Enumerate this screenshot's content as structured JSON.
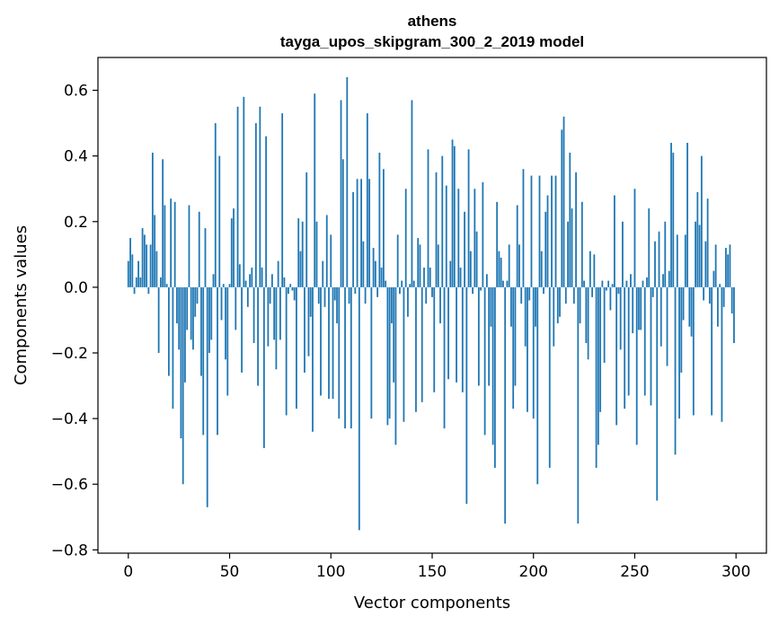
{
  "chart_data": {
    "type": "bar",
    "title": "athens",
    "subtitle": "tayga_upos_skipgram_300_2_2019 model",
    "xlabel": "Vector components",
    "ylabel": "Components values",
    "xlim": [
      -15,
      315
    ],
    "ylim": [
      -0.81,
      0.7
    ],
    "xticks": [
      0,
      50,
      100,
      150,
      200,
      250,
      300
    ],
    "yticks": [
      -0.8,
      -0.6,
      -0.4,
      -0.2,
      0.0,
      0.2,
      0.4,
      0.6
    ],
    "ytick_labels": [
      "−0.8",
      "−0.6",
      "−0.4",
      "−0.2",
      "0.0",
      "0.2",
      "0.4",
      "0.6"
    ],
    "xtick_labels": [
      "0",
      "50",
      "100",
      "150",
      "200",
      "250",
      "300"
    ],
    "bar_color": "#1f77b4",
    "values": [
      0.08,
      0.15,
      0.1,
      -0.02,
      0.03,
      0.08,
      0.03,
      0.18,
      0.16,
      0.13,
      -0.02,
      0.13,
      0.41,
      0.22,
      0.11,
      -0.2,
      0.03,
      0.39,
      0.25,
      0.01,
      -0.27,
      0.27,
      -0.37,
      0.26,
      -0.11,
      -0.19,
      -0.46,
      -0.6,
      -0.29,
      -0.13,
      0.25,
      -0.16,
      -0.19,
      -0.09,
      -0.05,
      0.23,
      -0.27,
      -0.45,
      0.18,
      -0.67,
      -0.2,
      -0.16,
      0.04,
      0.5,
      -0.45,
      0.4,
      -0.1,
      0.01,
      -0.22,
      -0.33,
      0.01,
      0.21,
      0.24,
      -0.13,
      0.55,
      0.07,
      -0.26,
      0.58,
      0.02,
      -0.06,
      0.04,
      0.06,
      -0.17,
      0.5,
      -0.3,
      0.55,
      0.06,
      -0.49,
      0.46,
      -0.18,
      -0.05,
      0.04,
      -0.16,
      -0.25,
      0.08,
      -0.16,
      0.53,
      0.03,
      -0.39,
      -0.02,
      0.01,
      -0.01,
      -0.04,
      -0.37,
      0.21,
      0.11,
      0.2,
      -0.26,
      0.35,
      -0.21,
      -0.09,
      -0.44,
      0.59,
      0.2,
      -0.05,
      -0.33,
      0.08,
      -0.06,
      0.22,
      -0.34,
      0.16,
      -0.34,
      -0.04,
      -0.11,
      -0.4,
      0.57,
      0.39,
      -0.43,
      0.64,
      -0.05,
      -0.43,
      0.29,
      -0.02,
      0.33,
      -0.74,
      0.33,
      0.14,
      -0.05,
      0.53,
      0.33,
      -0.4,
      0.12,
      0.08,
      -0.03,
      0.41,
      0.06,
      0.36,
      0.02,
      -0.42,
      -0.4,
      -0.11,
      -0.29,
      -0.48,
      0.16,
      -0.02,
      0.02,
      -0.41,
      0.3,
      -0.09,
      0.01,
      0.57,
      0.02,
      -0.38,
      0.15,
      0.13,
      -0.35,
      0.06,
      -0.05,
      0.42,
      0.06,
      -0.03,
      -0.32,
      0.35,
      0.13,
      -0.11,
      0.4,
      -0.43,
      0.31,
      -0.28,
      0.08,
      0.45,
      0.43,
      -0.29,
      0.3,
      0.06,
      -0.32,
      0.23,
      -0.66,
      0.42,
      0.11,
      -0.02,
      0.3,
      0.17,
      -0.3,
      -0.01,
      0.32,
      -0.45,
      0.04,
      -0.3,
      -0.12,
      -0.48,
      -0.55,
      0.26,
      0.11,
      0.09,
      0.02,
      -0.72,
      0.02,
      0.13,
      -0.12,
      -0.37,
      -0.3,
      0.25,
      0.13,
      -0.05,
      0.36,
      -0.18,
      -0.38,
      -0.04,
      0.34,
      -0.4,
      -0.12,
      -0.6,
      0.34,
      0.11,
      -0.02,
      0.23,
      0.28,
      -0.55,
      0.34,
      -0.18,
      0.34,
      -0.11,
      -0.09,
      0.48,
      0.52,
      -0.05,
      0.2,
      0.41,
      0.24,
      -0.05,
      0.35,
      -0.72,
      -0.11,
      0.26,
      0.02,
      -0.17,
      -0.22,
      0.11,
      -0.03,
      0.1,
      -0.55,
      -0.48,
      -0.38,
      0.02,
      -0.23,
      -0.01,
      0.02,
      -0.07,
      0.01,
      0.28,
      -0.42,
      -0.02,
      -0.19,
      0.2,
      -0.37,
      0.02,
      -0.33,
      0.04,
      -0.14,
      0.3,
      -0.48,
      -0.13,
      -0.13,
      0.02,
      -0.33,
      0.03,
      0.24,
      -0.36,
      -0.03,
      0.14,
      -0.65,
      0.17,
      -0.18,
      0.04,
      0.2,
      -0.24,
      0.05,
      0.44,
      0.41,
      -0.51,
      0.16,
      -0.4,
      -0.26,
      -0.1,
      0.16,
      0.44,
      -0.12,
      -0.15,
      -0.39,
      0.2,
      0.29,
      0.19,
      0.4,
      -0.04,
      0.14,
      0.27,
      -0.05,
      -0.39,
      0.05,
      0.13,
      -0.12,
      0.01,
      -0.41,
      -0.06,
      0.12,
      0.1,
      0.13,
      -0.08,
      -0.17
    ]
  }
}
